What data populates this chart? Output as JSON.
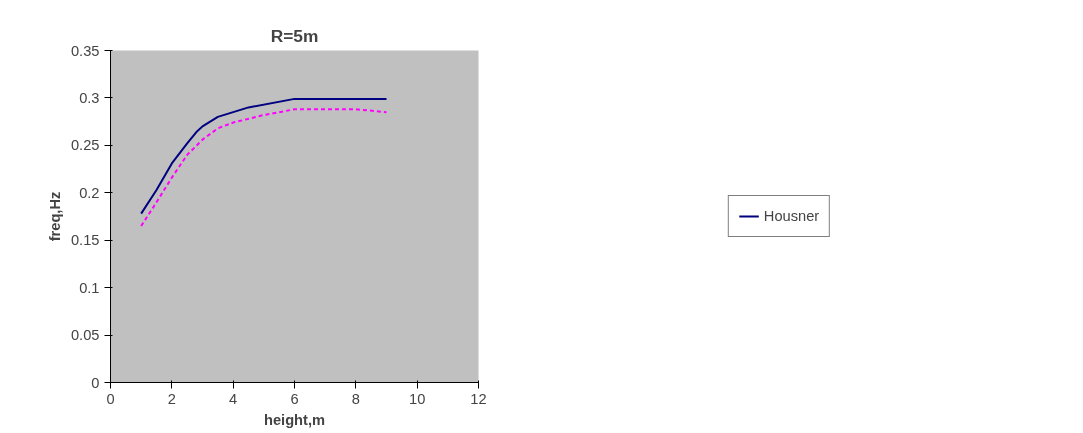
{
  "chart_data": {
    "type": "line",
    "title": "R=5m",
    "xlabel": "height,m",
    "ylabel": "freq,Hz",
    "xlim": [
      0,
      12
    ],
    "xticks": [
      0,
      2,
      4,
      6,
      8,
      10,
      12
    ],
    "ylim": [
      0,
      0.35
    ],
    "yticks": [
      0,
      0.05,
      0.1,
      0.15,
      0.2,
      0.25,
      0.3,
      0.35
    ],
    "grid": false,
    "legend": "right",
    "marker": "none",
    "series": [
      {
        "name": "Housner",
        "color": "#000080",
        "line_style": "solid",
        "x": [
          1,
          1.5,
          2,
          2.5,
          2.8,
          3,
          3.5,
          4.5,
          6,
          9
        ],
        "values": [
          0.178,
          0.203,
          0.231,
          0.252,
          0.264,
          0.27,
          0.28,
          0.29,
          0.299,
          0.299
        ]
      },
      {
        "color": "#ff00ff",
        "line_style": "dotted",
        "x": [
          1,
          1.5,
          2,
          2.5,
          3,
          3.5,
          4,
          5,
          6,
          8,
          9
        ],
        "values": [
          0.165,
          0.19,
          0.216,
          0.24,
          0.256,
          0.268,
          0.274,
          0.282,
          0.288,
          0.288,
          0.285
        ]
      }
    ]
  }
}
